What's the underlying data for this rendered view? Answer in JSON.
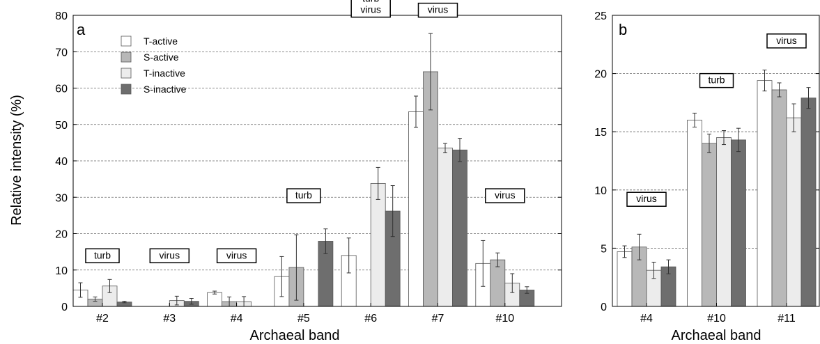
{
  "chart_data": [
    {
      "type": "bar",
      "panel_label": "a",
      "ylabel": "Relative intensity (%)",
      "xlabel": "Archaeal band",
      "ylim": [
        0,
        80
      ],
      "yticks": [
        "0",
        "10",
        "20",
        "30",
        "40",
        "50",
        "60",
        "70",
        "80"
      ],
      "grid": "horizontal dashed",
      "legend_placement": "top-left",
      "categories": [
        "#2",
        "#3",
        "#4",
        "#5",
        "#6",
        "#7",
        "#10"
      ],
      "series": [
        {
          "name": "T-active",
          "color": "#ffffff",
          "values": [
            4.5,
            null,
            3.8,
            8.2,
            14.0,
            53.5,
            11.8
          ],
          "errors": [
            2.0,
            null,
            0.4,
            5.5,
            4.8,
            4.3,
            6.3
          ]
        },
        {
          "name": "S-active",
          "color": "#b8b8b8",
          "values": [
            2.0,
            null,
            1.3,
            10.7,
            null,
            64.5,
            12.8
          ],
          "errors": [
            0.6,
            null,
            1.3,
            9.0,
            null,
            10.5,
            1.9
          ]
        },
        {
          "name": "T-inactive",
          "color": "#ececec",
          "values": [
            5.6,
            1.6,
            1.3,
            null,
            33.8,
            43.5,
            6.4
          ],
          "errors": [
            1.8,
            1.2,
            1.4,
            null,
            4.4,
            1.3,
            2.6
          ]
        },
        {
          "name": "S-inactive",
          "color": "#6e6e6e",
          "values": [
            1.2,
            1.4,
            null,
            17.9,
            26.2,
            43.0,
            4.5
          ],
          "errors": [
            0.2,
            0.8,
            null,
            3.4,
            7.0,
            3.2,
            0.9
          ]
        }
      ],
      "annotations": [
        {
          "category": "#2",
          "lines": [
            "turb"
          ],
          "y": 12
        },
        {
          "category": "#3",
          "lines": [
            "virus"
          ],
          "y": 12
        },
        {
          "category": "#4",
          "lines": [
            "virus"
          ],
          "y": 12
        },
        {
          "category": "#5",
          "lines": [
            "turb"
          ],
          "y": 28.5
        },
        {
          "category": "#6",
          "lines": [
            "turb",
            "virus"
          ],
          "y": 79.5
        },
        {
          "category": "#7",
          "lines": [
            "virus"
          ],
          "y": 79.5
        },
        {
          "category": "#10",
          "lines": [
            "virus"
          ],
          "y": 28.5
        }
      ]
    },
    {
      "type": "bar",
      "panel_label": "b",
      "xlabel": "Archaeal band",
      "ylim": [
        0,
        25
      ],
      "yticks": [
        "0",
        "5",
        "10",
        "15",
        "20",
        "25"
      ],
      "grid": "horizontal dashed",
      "categories": [
        "#4",
        "#10",
        "#11"
      ],
      "series": [
        {
          "name": "T-active",
          "color": "#ffffff",
          "values": [
            4.7,
            16.0,
            19.4
          ],
          "errors": [
            0.5,
            0.6,
            0.9
          ]
        },
        {
          "name": "S-active",
          "color": "#b8b8b8",
          "values": [
            5.1,
            14.0,
            18.6
          ],
          "errors": [
            1.1,
            0.8,
            0.6
          ]
        },
        {
          "name": "T-inactive",
          "color": "#ececec",
          "values": [
            3.1,
            14.5,
            16.2
          ],
          "errors": [
            0.7,
            0.6,
            1.2
          ]
        },
        {
          "name": "S-inactive",
          "color": "#6e6e6e",
          "values": [
            3.4,
            14.3,
            17.9
          ],
          "errors": [
            0.6,
            1.0,
            0.9
          ]
        }
      ],
      "annotations": [
        {
          "category": "#4",
          "lines": [
            "virus"
          ],
          "y": 8.6
        },
        {
          "category": "#10",
          "lines": [
            "turb"
          ],
          "y": 18.8
        },
        {
          "category": "#11",
          "lines": [
            "virus"
          ],
          "y": 22.2
        }
      ]
    }
  ]
}
